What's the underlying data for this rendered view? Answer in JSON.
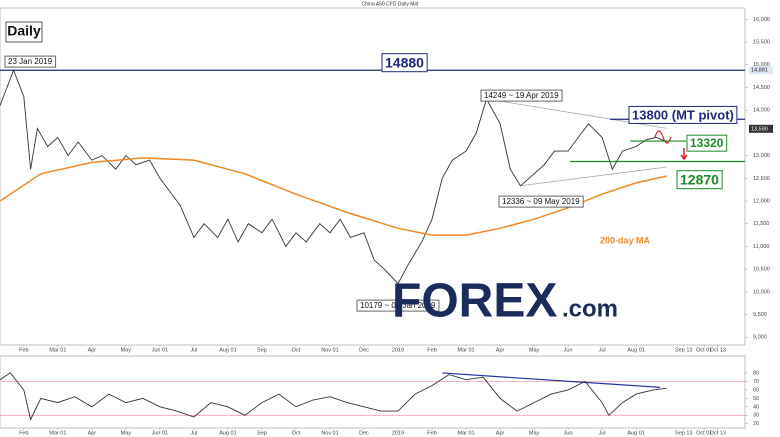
{
  "chart_data": [
    {
      "type": "line",
      "title": "China A50 CFD Daily Mid",
      "subtitle": "Daily",
      "xlim": [
        0.3,
        22.2
      ],
      "xticks": [
        {
          "value": 1,
          "label": "Feb"
        },
        {
          "value": 2,
          "label": "Mar 01"
        },
        {
          "value": 3,
          "label": "Apr"
        },
        {
          "value": 4,
          "label": "May"
        },
        {
          "value": 5,
          "label": "Jun 01"
        },
        {
          "value": 6,
          "label": "Jul"
        },
        {
          "value": 7,
          "label": "Aug 01"
        },
        {
          "value": 8,
          "label": "Sep"
        },
        {
          "value": 9,
          "label": "Oct"
        },
        {
          "value": 10,
          "label": "Nov 01"
        },
        {
          "value": 11,
          "label": "Dec"
        },
        {
          "value": 12,
          "label": "2019"
        },
        {
          "value": 13,
          "label": "Feb"
        },
        {
          "value": 14,
          "label": "Mar 01"
        },
        {
          "value": 15,
          "label": "Apr"
        },
        {
          "value": 16,
          "label": "May"
        },
        {
          "value": 17,
          "label": "Jun"
        },
        {
          "value": 18,
          "label": "Jul"
        },
        {
          "value": 19,
          "label": "Aug 01"
        },
        {
          "value": 20.4,
          "label": "Sep 13"
        },
        {
          "value": 21,
          "label": "Oct 01"
        },
        {
          "value": 21.4,
          "label": "Oct 13"
        }
      ],
      "ylim": [
        8830,
        16250
      ],
      "yticks": [
        {
          "value": 9000,
          "label": "9,000"
        },
        {
          "value": 9500,
          "label": "9,500"
        },
        {
          "value": 10000,
          "label": "10,000"
        },
        {
          "value": 10500,
          "label": "10,500"
        },
        {
          "value": 11000,
          "label": "11,000"
        },
        {
          "value": 11500,
          "label": "11,500"
        },
        {
          "value": 12000,
          "label": "12,000"
        },
        {
          "value": 12500,
          "label": "12,500"
        },
        {
          "value": 13000,
          "label": "13,000"
        },
        {
          "value": 14000,
          "label": "14,000"
        },
        {
          "value": 14500,
          "label": "14,500"
        },
        {
          "value": 15000,
          "label": "15,000"
        },
        {
          "value": 15500,
          "label": "15,500"
        },
        {
          "value": 16000,
          "label": "16,000"
        }
      ],
      "axis_markers": [
        {
          "value": 14881,
          "label": "14,881",
          "color": "#dfe8f7"
        },
        {
          "value": 13590,
          "label": "13,590",
          "color": "#333333"
        }
      ],
      "series": [
        {
          "color": "#333333",
          "x": [
            0.3,
            0.7,
            1.0,
            1.2,
            1.4,
            1.7,
            2.0,
            2.3,
            2.6,
            3.0,
            3.3,
            3.7,
            4.0,
            4.3,
            4.7,
            5.0,
            5.3,
            5.6,
            6.0,
            6.3,
            6.7,
            7.0,
            7.3,
            7.6,
            8.0,
            8.3,
            8.7,
            9.0,
            9.3,
            9.7,
            10.0,
            10.3,
            10.6,
            11.0,
            11.3,
            11.6,
            12.0,
            12.3,
            12.7,
            13.0,
            13.3,
            13.6,
            14.0,
            14.3,
            14.6,
            15.0,
            15.3,
            15.6,
            16.0,
            16.3,
            16.6,
            17.0,
            17.3,
            17.6,
            18.0,
            18.3,
            18.6,
            19.0,
            19.3,
            19.6,
            19.9
          ],
          "values": [
            14100,
            14880,
            14300,
            12700,
            13600,
            13200,
            13400,
            13000,
            13300,
            12900,
            13000,
            12700,
            13000,
            12800,
            12900,
            12500,
            12200,
            11900,
            11200,
            11500,
            11200,
            11600,
            11100,
            11500,
            11300,
            11600,
            11000,
            11300,
            11100,
            11500,
            11300,
            11600,
            11200,
            11300,
            10700,
            10500,
            10179,
            10600,
            11100,
            11600,
            12500,
            12900,
            13100,
            13500,
            14249,
            13700,
            12700,
            12336,
            12600,
            12800,
            13100,
            13100,
            13400,
            13700,
            13400,
            12700,
            13100,
            13200,
            13350,
            13400,
            13300
          ]
        },
        {
          "name": "200-day MA",
          "color": "#f08a24",
          "x": [
            0.3,
            1.5,
            3.0,
            4.5,
            6.0,
            7.5,
            9.0,
            10.5,
            12.0,
            13.0,
            14.0,
            15.0,
            16.0,
            17.0,
            18.0,
            19.0,
            19.9
          ],
          "values": [
            12000,
            12600,
            12850,
            12950,
            12900,
            12600,
            12150,
            11750,
            11400,
            11250,
            11250,
            11400,
            11600,
            11850,
            12150,
            12400,
            12550
          ]
        }
      ],
      "levels": [
        {
          "value": 14880,
          "label": "14880",
          "color": "#1f2a7a"
        },
        {
          "value": 13800,
          "label": "13800 (MT pivot)",
          "color": "#1f2a7a"
        },
        {
          "value": 13320,
          "label": "13320",
          "color": "#1a8a2a"
        },
        {
          "value": 12870,
          "label": "12870",
          "color": "#1a8a2a"
        }
      ],
      "trendlines": [
        {
          "x": [
            14.6,
            19.9
          ],
          "values": [
            14249,
            13600
          ]
        },
        {
          "x": [
            15.6,
            19.9
          ],
          "values": [
            12336,
            12750
          ]
        }
      ],
      "annotations": [
        "23 Jan 2019",
        "14249 ~ 19 Apr 2019",
        "12336 ~ 09 May 2019",
        "10179 ~ 02 Jan 2019"
      ],
      "brand": [
        "FOREX",
        ".com"
      ]
    },
    {
      "type": "line",
      "xlim": [
        0.3,
        22.2
      ],
      "ylim": [
        15,
        100
      ],
      "yticks": [
        20,
        30,
        40,
        50,
        60,
        70,
        80
      ],
      "bands": [
        {
          "value": 70,
          "color": "#f2a0b0"
        },
        {
          "value": 30,
          "color": "#f2a0b0"
        }
      ],
      "series": [
        {
          "color": "#333333",
          "x": [
            0.3,
            0.6,
            1.0,
            1.2,
            1.5,
            2.0,
            2.5,
            3.0,
            3.5,
            4.0,
            4.5,
            5.0,
            5.5,
            6.0,
            6.5,
            7.0,
            7.5,
            8.0,
            8.5,
            9.0,
            9.5,
            10.0,
            10.5,
            11.0,
            11.5,
            12.0,
            12.5,
            13.0,
            13.5,
            14.0,
            14.5,
            15.0,
            15.5,
            16.0,
            16.5,
            17.0,
            17.5,
            18.0,
            18.2,
            18.6,
            19.0,
            19.5,
            19.9
          ],
          "values": [
            72,
            80,
            60,
            25,
            50,
            45,
            52,
            40,
            55,
            45,
            50,
            40,
            35,
            28,
            45,
            40,
            30,
            45,
            55,
            40,
            48,
            52,
            45,
            40,
            35,
            35,
            55,
            65,
            78,
            72,
            75,
            50,
            35,
            45,
            55,
            60,
            70,
            45,
            30,
            45,
            55,
            60,
            62
          ]
        }
      ],
      "trendlines": [
        {
          "x": [
            13.3,
            19.7
          ],
          "values": [
            80,
            63
          ],
          "color": "#2233aa"
        }
      ]
    }
  ]
}
